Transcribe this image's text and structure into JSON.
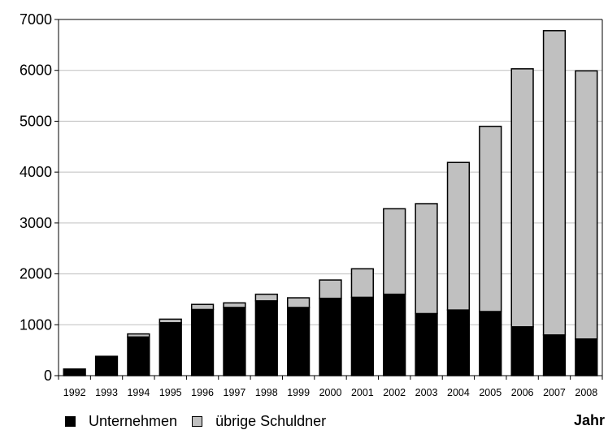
{
  "chart_data": {
    "type": "bar",
    "stacked": true,
    "categories": [
      "1992",
      "1993",
      "1994",
      "1995",
      "1996",
      "1997",
      "1998",
      "1999",
      "2000",
      "2001",
      "2002",
      "2003",
      "2004",
      "2005",
      "2006",
      "2007",
      "2008"
    ],
    "series": [
      {
        "name": "Unternehmen",
        "color": "#000000",
        "values": [
          130,
          380,
          760,
          1040,
          1300,
          1340,
          1470,
          1340,
          1520,
          1540,
          1600,
          1220,
          1290,
          1260,
          960,
          800,
          720
        ]
      },
      {
        "name": "übrige Schuldner",
        "color": "#c0c0c0",
        "values": [
          0,
          0,
          60,
          70,
          100,
          90,
          130,
          190,
          360,
          560,
          1680,
          2160,
          2900,
          3640,
          5070,
          5980,
          5270
        ]
      }
    ],
    "yticks": [
      0,
      1000,
      2000,
      3000,
      4000,
      5000,
      6000,
      7000
    ],
    "ylim": [
      0,
      7000
    ],
    "xlabel": "Jahr",
    "ylabel": "",
    "grid": true,
    "legend": "bottom-left"
  }
}
